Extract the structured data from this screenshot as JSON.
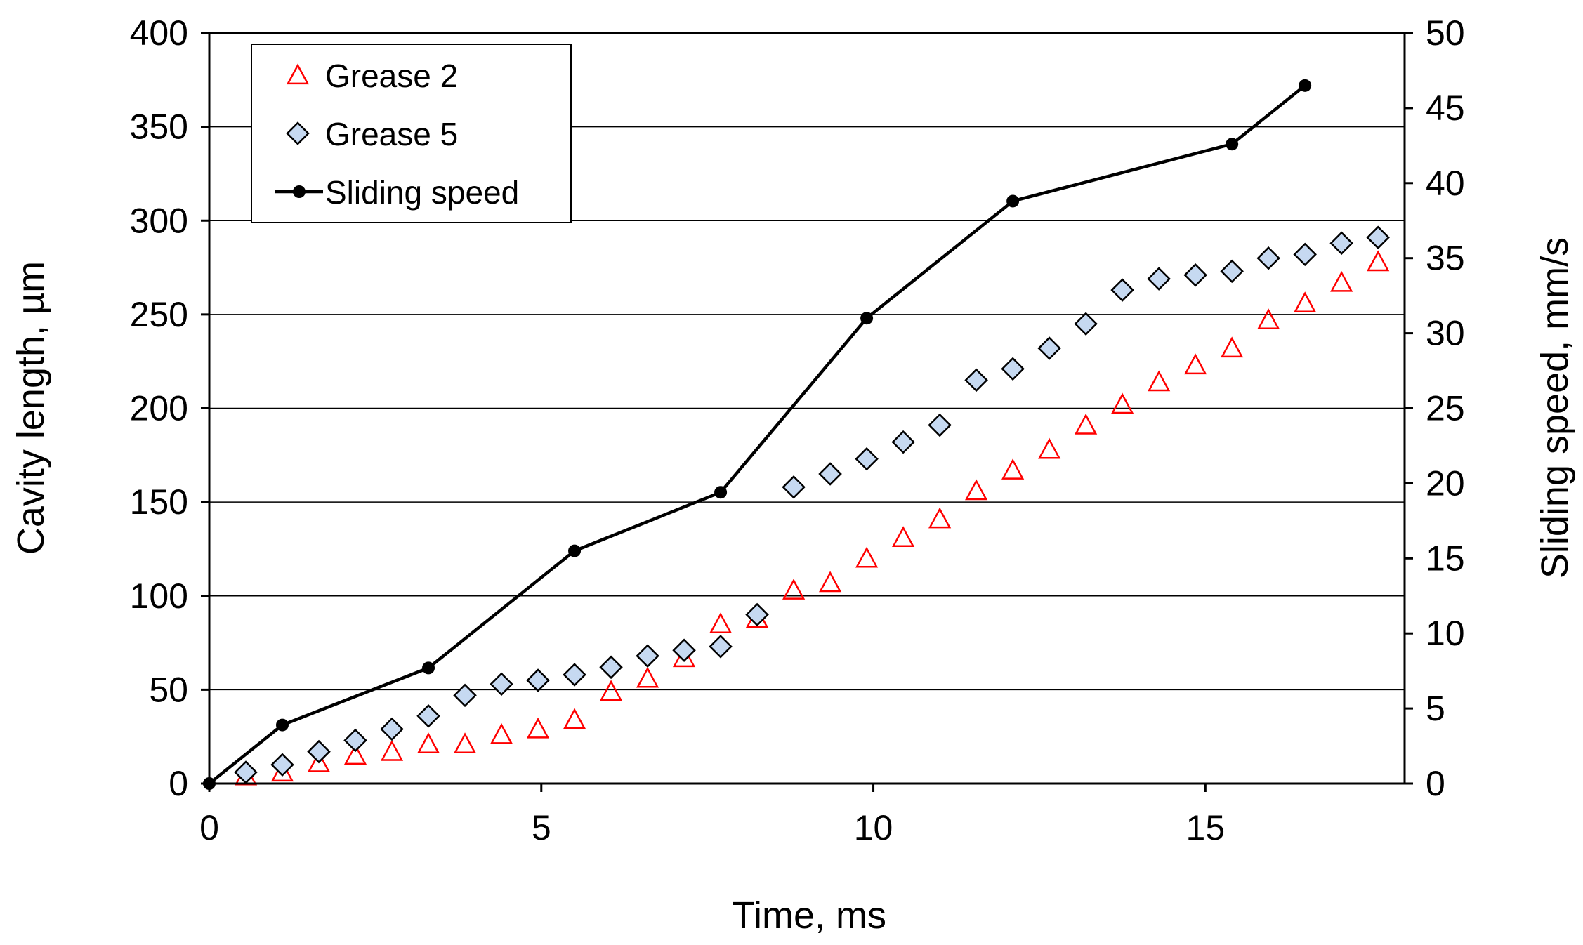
{
  "chart_data": {
    "type": "scatter",
    "title": "",
    "xlabel": "Time, ms",
    "ylabel": "Cavity length, µm",
    "y2label": "Sliding speed, mm/s",
    "xlim": [
      0,
      18
    ],
    "ylim": [
      0,
      400
    ],
    "y2lim": [
      0,
      50
    ],
    "x_ticks": [
      0,
      5,
      10,
      15
    ],
    "y_ticks": [
      0,
      50,
      100,
      150,
      200,
      250,
      300,
      350,
      400
    ],
    "y2_ticks": [
      0,
      5,
      10,
      15,
      20,
      25,
      30,
      35,
      40,
      45,
      50
    ],
    "grid": "horizontal",
    "legend_position": "top-left",
    "series": [
      {
        "name": "Grease 2",
        "axis": "left",
        "marker": "triangle-open",
        "color": "#ff0000",
        "x": [
          0.55,
          1.1,
          1.65,
          2.2,
          2.75,
          3.3,
          3.85,
          4.4,
          4.95,
          5.5,
          6.05,
          6.6,
          7.15,
          7.7,
          8.25,
          8.8,
          9.35,
          9.9,
          10.45,
          11.0,
          11.55,
          12.1,
          12.65,
          13.2,
          13.75,
          14.3,
          14.85,
          15.4,
          15.95,
          16.5,
          17.05,
          17.6
        ],
        "y": [
          4,
          6,
          11,
          15,
          17,
          21,
          21,
          26,
          29,
          34,
          49,
          56,
          67,
          85,
          88,
          103,
          107,
          120,
          131,
          141,
          156,
          167,
          178,
          191,
          202,
          214,
          223,
          232,
          247,
          256,
          267,
          278
        ]
      },
      {
        "name": "Grease 5",
        "axis": "left",
        "marker": "diamond",
        "color": "#c6d9f1",
        "x": [
          0.55,
          1.1,
          1.65,
          2.2,
          2.75,
          3.3,
          3.85,
          4.4,
          4.95,
          5.5,
          6.05,
          6.6,
          7.15,
          7.7,
          8.25,
          8.8,
          9.35,
          9.9,
          10.45,
          11.0,
          11.55,
          12.1,
          12.65,
          13.2,
          13.75,
          14.3,
          14.85,
          15.4,
          15.95,
          16.5,
          17.05,
          17.6
        ],
        "y": [
          6,
          10,
          17,
          23,
          29,
          36,
          47,
          53,
          55,
          58,
          62,
          68,
          71,
          73,
          90,
          158,
          165,
          173,
          182,
          191,
          215,
          221,
          232,
          245,
          263,
          269,
          271,
          273,
          280,
          282,
          288,
          291
        ]
      },
      {
        "name": "Sliding speed",
        "axis": "right",
        "marker": "circle-line",
        "color": "#000000",
        "x": [
          0,
          1.1,
          3.3,
          5.5,
          7.7,
          9.9,
          12.1,
          15.4,
          16.5
        ],
        "y": [
          0,
          3.9,
          7.7,
          15.5,
          19.4,
          31.0,
          38.8,
          42.6,
          46.5
        ]
      }
    ]
  }
}
